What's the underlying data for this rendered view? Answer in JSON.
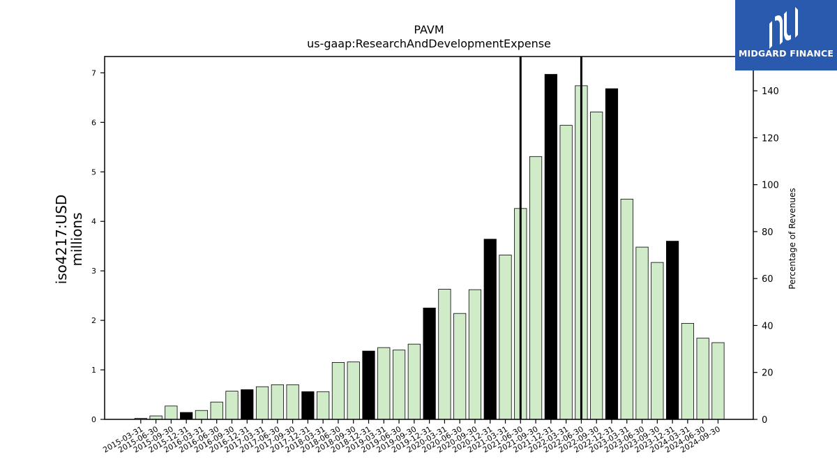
{
  "brand": {
    "name": "MIDGARD FINANCE",
    "bg_color": "#2a5aad"
  },
  "chart_data": {
    "type": "bar",
    "title": "PAVM",
    "subtitle": "us-gaap:ResearchAndDevelopmentExpense",
    "ylabel": "iso4217:USD\nmillions",
    "y2label": "Percentage of Revenues",
    "ylim": [
      0,
      7.33
    ],
    "y2lim": [
      0,
      154.6
    ],
    "yticks": [
      0,
      1,
      2,
      3,
      4,
      5,
      6,
      7
    ],
    "y2ticks": [
      0,
      20,
      40,
      60,
      80,
      100,
      120,
      140
    ],
    "grid": false,
    "colors": {
      "quarter": "#d0ebc8",
      "fiscal_year": "#000000",
      "edge": "#000000"
    },
    "categories": [
      "2015-03-31",
      "2015-06-30",
      "2015-09-30",
      "2015-12-31",
      "2016-03-31",
      "2016-06-30",
      "2016-09-30",
      "2016-12-31",
      "2017-03-31",
      "2017-06-30",
      "2017-09-30",
      "2017-12-31",
      "2018-03-31",
      "2018-06-30",
      "2018-09-30",
      "2018-12-31",
      "2019-03-31",
      "2019-06-30",
      "2019-09-30",
      "2019-12-31",
      "2020-03-31",
      "2020-06-30",
      "2020-09-30",
      "2020-12-31",
      "2021-03-31",
      "2021-06-30",
      "2021-09-30",
      "2021-12-31",
      "2022-03-31",
      "2022-06-30",
      "2022-09-30",
      "2022-12-31",
      "2023-03-31",
      "2023-06-30",
      "2023-09-30",
      "2023-12-31",
      "2024-03-31",
      "2024-06-30",
      "2024-09-30"
    ],
    "values": [
      0.02,
      0.07,
      0.27,
      0.14,
      0.18,
      0.35,
      0.57,
      0.6,
      0.66,
      0.7,
      0.7,
      0.56,
      0.56,
      1.15,
      1.16,
      1.38,
      1.45,
      1.4,
      1.52,
      2.25,
      2.63,
      2.14,
      2.62,
      3.64,
      3.32,
      4.26,
      5.31,
      6.97,
      5.94,
      6.74,
      6.21,
      6.68,
      4.45,
      3.48,
      3.17,
      3.6,
      1.94,
      1.64,
      1.55
    ],
    "fiscal_year_flags": [
      false,
      false,
      false,
      true,
      false,
      false,
      false,
      true,
      false,
      false,
      false,
      true,
      false,
      false,
      false,
      true,
      false,
      false,
      false,
      true,
      false,
      false,
      false,
      true,
      false,
      false,
      false,
      true,
      false,
      false,
      false,
      true,
      false,
      false,
      false,
      true,
      false,
      false,
      false
    ],
    "pct_of_revenue": [
      {
        "x": "2021-06-30",
        "y": 154.6
      },
      {
        "x": "2022-06-30",
        "y": 154.6
      }
    ]
  }
}
